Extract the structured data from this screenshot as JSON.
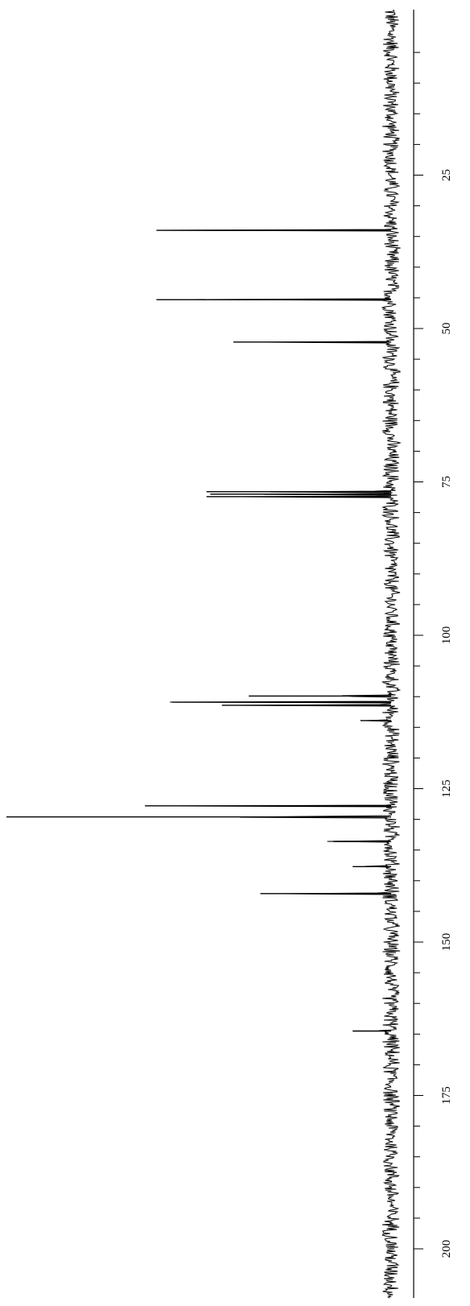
{
  "chart_data": {
    "type": "line",
    "orientation": "rotated-90-clockwise",
    "title": "",
    "xlabel": "",
    "ylabel": "",
    "xlim": [
      0,
      200
    ],
    "x_axis_reversed": false,
    "grid": false,
    "legend": "none",
    "major_ticks": [
      25,
      50,
      75,
      100,
      125,
      150,
      175,
      200
    ],
    "tick_labels": [
      "25",
      "50",
      "75",
      "100",
      "125",
      "150",
      "175",
      "200"
    ],
    "minor_tick_step": 5,
    "series": [
      {
        "line_color": "#000000",
        "noise_level": 0.04,
        "peaks": [
          {
            "x": 34.0,
            "height": 0.61
          },
          {
            "x": 45.3,
            "height": 0.61
          },
          {
            "x": 52.2,
            "height": 0.41
          },
          {
            "x": 76.6,
            "height": 0.48
          },
          {
            "x": 77.0,
            "height": 0.47
          },
          {
            "x": 77.4,
            "height": 0.48
          },
          {
            "x": 109.9,
            "height": 0.37
          },
          {
            "x": 110.9,
            "height": 0.57
          },
          {
            "x": 111.4,
            "height": 0.44
          },
          {
            "x": 113.9,
            "height": 0.08
          },
          {
            "x": 127.8,
            "height": 0.64
          },
          {
            "x": 129.6,
            "height": 1.0
          },
          {
            "x": 133.6,
            "height": 0.15
          },
          {
            "x": 137.7,
            "height": 0.1
          },
          {
            "x": 142.1,
            "height": 0.34
          },
          {
            "x": 164.5,
            "height": 0.1
          }
        ]
      }
    ]
  }
}
